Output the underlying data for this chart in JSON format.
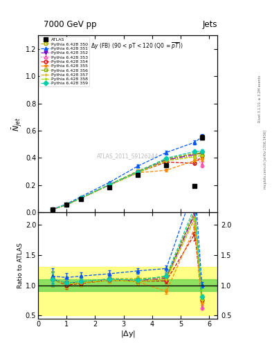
{
  "title_top": "7000 GeV pp",
  "title_right": "Jets",
  "xlabel": "|$\\Delta$y|",
  "ylabel_main": "$\\bar{N}_{jet}$",
  "ylabel_ratio": "Ratio to ATLAS",
  "watermark": "ATLAS_2011_S9126244",
  "rivet_label": "Rivet 3.1.10, ≥ 3.2M events",
  "mcplots_label": "mcplots.cern.ch [arXiv:1306.3436]",
  "x_vals": [
    0.5,
    1.0,
    1.5,
    2.5,
    3.5,
    4.5,
    5.5,
    5.75
  ],
  "atlas_y": [
    0.02,
    0.055,
    0.1,
    0.185,
    0.275,
    0.345,
    0.195,
    0.55
  ],
  "atlas_yerr": [
    0.002,
    0.003,
    0.004,
    0.006,
    0.008,
    0.01,
    0.01,
    0.018
  ],
  "series": [
    {
      "label": "Pythia 6.428 350",
      "color": "#aaaa00",
      "linestyle": "--",
      "marker": "s",
      "markerfacecolor": "none",
      "y": [
        0.022,
        0.057,
        0.105,
        0.205,
        0.305,
        0.39,
        0.43,
        0.44
      ],
      "yerr": [
        0.001,
        0.002,
        0.003,
        0.005,
        0.007,
        0.009,
        0.011,
        0.014
      ]
    },
    {
      "label": "Pythia 6.428 351",
      "color": "#0055ff",
      "linestyle": "--",
      "marker": "^",
      "markerfacecolor": "#0055ff",
      "y": [
        0.023,
        0.062,
        0.115,
        0.22,
        0.34,
        0.44,
        0.515,
        0.555
      ],
      "yerr": [
        0.001,
        0.002,
        0.004,
        0.006,
        0.009,
        0.011,
        0.014,
        0.018
      ]
    },
    {
      "label": "Pythia 6.428 352",
      "color": "#7700bb",
      "linestyle": "-.",
      "marker": "v",
      "markerfacecolor": "#7700bb",
      "y": [
        0.022,
        0.057,
        0.105,
        0.202,
        0.295,
        0.385,
        0.425,
        0.435
      ],
      "yerr": [
        0.001,
        0.002,
        0.003,
        0.005,
        0.007,
        0.009,
        0.011,
        0.014
      ]
    },
    {
      "label": "Pythia 6.428 353",
      "color": "#ff44aa",
      "linestyle": ":",
      "marker": "^",
      "markerfacecolor": "none",
      "y": [
        0.022,
        0.057,
        0.105,
        0.202,
        0.296,
        0.38,
        0.415,
        0.35
      ],
      "yerr": [
        0.001,
        0.002,
        0.003,
        0.005,
        0.007,
        0.009,
        0.012,
        0.02
      ]
    },
    {
      "label": "Pythia 6.428 354",
      "color": "#dd0000",
      "linestyle": "--",
      "marker": "o",
      "markerfacecolor": "none",
      "y": [
        0.022,
        0.055,
        0.103,
        0.2,
        0.292,
        0.37,
        0.36,
        0.415
      ],
      "yerr": [
        0.001,
        0.002,
        0.003,
        0.005,
        0.007,
        0.009,
        0.011,
        0.014
      ]
    },
    {
      "label": "Pythia 6.428 355",
      "color": "#ff8800",
      "linestyle": "--",
      "marker": "*",
      "markerfacecolor": "#ff8800",
      "y": [
        0.022,
        0.056,
        0.104,
        0.2,
        0.291,
        0.31,
        0.38,
        0.39
      ],
      "yerr": [
        0.001,
        0.002,
        0.003,
        0.005,
        0.007,
        0.009,
        0.011,
        0.014
      ]
    },
    {
      "label": "Pythia 6.428 356",
      "color": "#88aa00",
      "linestyle": "--",
      "marker": "s",
      "markerfacecolor": "none",
      "y": [
        0.022,
        0.057,
        0.105,
        0.204,
        0.298,
        0.395,
        0.435,
        0.425
      ],
      "yerr": [
        0.001,
        0.002,
        0.003,
        0.005,
        0.007,
        0.009,
        0.011,
        0.014
      ]
    },
    {
      "label": "Pythia 6.428 357",
      "color": "#ddaa00",
      "linestyle": "--",
      "marker": "+",
      "markerfacecolor": "#ddaa00",
      "y": [
        0.022,
        0.057,
        0.105,
        0.202,
        0.292,
        0.38,
        0.412,
        0.418
      ],
      "yerr": [
        0.001,
        0.002,
        0.003,
        0.005,
        0.007,
        0.009,
        0.011,
        0.014
      ]
    },
    {
      "label": "Pythia 6.428 358",
      "color": "#aadd00",
      "linestyle": "--",
      "marker": ".",
      "markerfacecolor": "#aadd00",
      "y": [
        0.022,
        0.056,
        0.104,
        0.201,
        0.29,
        0.378,
        0.408,
        0.418
      ],
      "yerr": [
        0.001,
        0.002,
        0.003,
        0.005,
        0.007,
        0.009,
        0.011,
        0.014
      ]
    },
    {
      "label": "Pythia 6.428 359",
      "color": "#00ccaa",
      "linestyle": "--",
      "marker": "D",
      "markerfacecolor": "#00ccaa",
      "y": [
        0.022,
        0.057,
        0.106,
        0.204,
        0.298,
        0.398,
        0.448,
        0.448
      ],
      "yerr": [
        0.001,
        0.002,
        0.003,
        0.005,
        0.007,
        0.009,
        0.011,
        0.014
      ]
    }
  ],
  "main_ylim": [
    0.0,
    1.3
  ],
  "ratio_ylim": [
    0.45,
    2.2
  ],
  "xlim": [
    0.0,
    6.3
  ],
  "ratio_yticks": [
    0.5,
    1.0,
    1.5,
    2.0
  ]
}
